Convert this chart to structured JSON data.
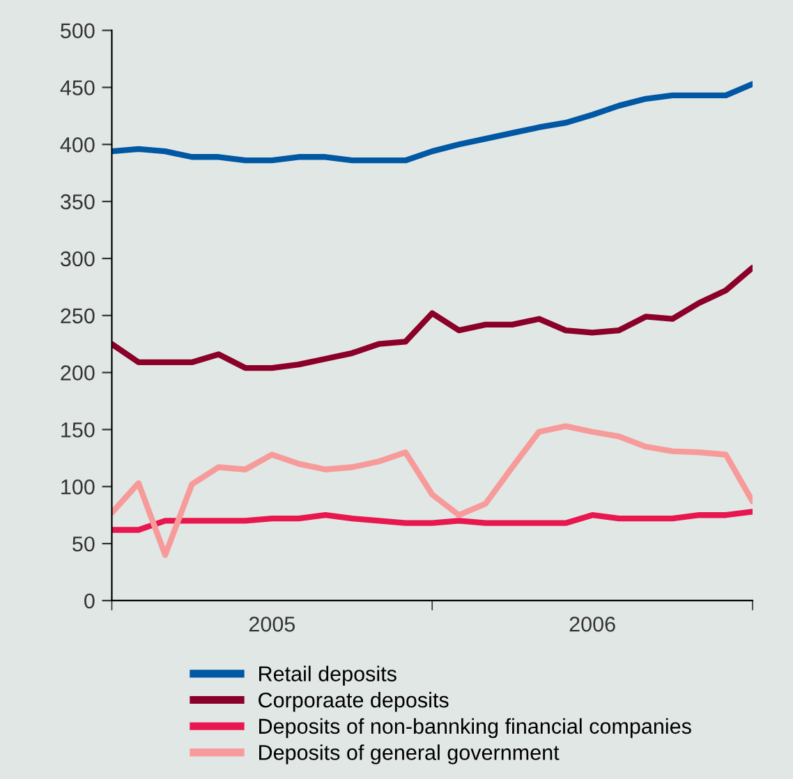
{
  "chart_data": {
    "type": "line",
    "categories": [
      null,
      null,
      null,
      null,
      null,
      null,
      "2005",
      null,
      null,
      null,
      null,
      null,
      null,
      null,
      null,
      null,
      null,
      null,
      "2006",
      null,
      null,
      null,
      null,
      null,
      null
    ],
    "ylim": [
      0,
      500
    ],
    "yticks": [
      0,
      50,
      100,
      150,
      200,
      250,
      300,
      350,
      400,
      450,
      500
    ],
    "grid": false,
    "legend": "bottom",
    "marker": "none",
    "line_style": "solid",
    "series": [
      {
        "name": "Retail deposits",
        "color": "#0057a3",
        "values": [
          394,
          396,
          394,
          389,
          389,
          386,
          386,
          389,
          389,
          386,
          386,
          386,
          394,
          400,
          405,
          410,
          415,
          419,
          426,
          434,
          440,
          443,
          443,
          443,
          453
        ]
      },
      {
        "name": "Corporaate deposits",
        "color": "#8b0028",
        "values": [
          225,
          209,
          209,
          209,
          216,
          204,
          204,
          207,
          212,
          217,
          225,
          227,
          252,
          237,
          242,
          242,
          247,
          237,
          235,
          237,
          249,
          247,
          261,
          272,
          292
        ]
      },
      {
        "name": "Deposits of non-bannking financial companies",
        "color": "#e8174f",
        "values": [
          62,
          62,
          70,
          70,
          70,
          70,
          72,
          72,
          75,
          72,
          70,
          68,
          68,
          70,
          68,
          68,
          68,
          68,
          75,
          72,
          72,
          72,
          75,
          75,
          78
        ]
      },
      {
        "name": "Deposits of general government",
        "color": "#f79a9a",
        "values": [
          77,
          103,
          40,
          102,
          117,
          115,
          128,
          120,
          115,
          117,
          122,
          130,
          93,
          75,
          85,
          117,
          148,
          153,
          148,
          144,
          135,
          131,
          130,
          128,
          87
        ]
      }
    ]
  }
}
